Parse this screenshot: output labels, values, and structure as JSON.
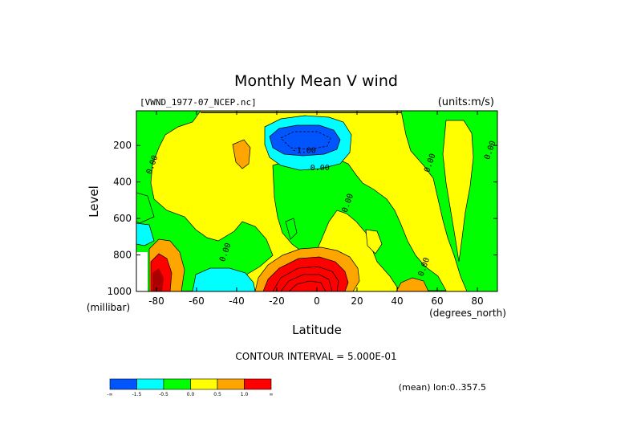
{
  "chart_data": {
    "type": "heatmap",
    "title": "Monthly Mean V wind",
    "dataset_label": "[VWND_1977-07_NCEP.nc]",
    "units_label": "(units:m/s)",
    "xlabel": "Latitude",
    "xunits": "(degrees_north)",
    "ylabel": "Level",
    "yunits": "(millibar)",
    "xlim": [
      -90,
      90
    ],
    "ylim": [
      1000,
      10
    ],
    "x_ticks": [
      -80,
      -60,
      -40,
      -20,
      0,
      20,
      40,
      60,
      80
    ],
    "y_ticks": [
      200,
      400,
      600,
      800,
      1000
    ],
    "contour_interval_label": "CONTOUR INTERVAL = 5.000E-01",
    "mean_label": "(mean) lon:0..357.5",
    "contour_labels": [
      {
        "text": "0.00",
        "lat": -81,
        "level": 310
      },
      {
        "text": "-1.00",
        "lat": -6.5,
        "level": 240
      },
      {
        "text": "0.00",
        "lat": 1.5,
        "level": 335
      },
      {
        "text": "0.00",
        "lat": 16.5,
        "level": 520
      },
      {
        "text": "0.00",
        "lat": -44.5,
        "level": 790
      },
      {
        "text": "0.00",
        "lat": 57.5,
        "level": 300
      },
      {
        "text": "0.00",
        "lat": 87.5,
        "level": 230
      },
      {
        "text": "0.00",
        "lat": 54.5,
        "level": 870
      }
    ],
    "legend": {
      "bins": [
        {
          "color": "#0055ff",
          "label": "-1.5"
        },
        {
          "color": "#00ffff",
          "label": "-0.5"
        },
        {
          "color": "#00ff00",
          "label": "0.0"
        },
        {
          "color": "#ffff00",
          "label": "0.5"
        },
        {
          "color": "#ffa500",
          "label": "1.0"
        },
        {
          "color": "#ff0000",
          "label": ""
        }
      ],
      "end_labels": [
        "-∞",
        "∞"
      ]
    },
    "colors": {
      "blue": "#0055ff",
      "cyan": "#00ffff",
      "green": "#00ff00",
      "yellow": "#ffff00",
      "orange": "#ffa500",
      "red": "#ff0000",
      "darkred": "#aa0000"
    }
  }
}
